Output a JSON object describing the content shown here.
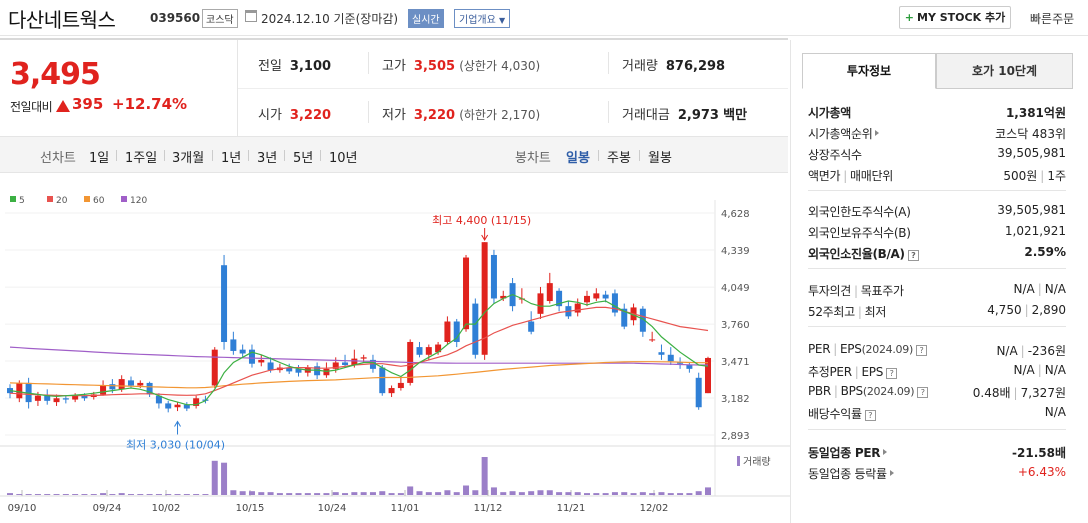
{
  "header": {
    "name": "다산네트웍스",
    "code": "039560",
    "market": "코스닥",
    "date": "2024.12.10 기준(장마감)",
    "live": "실시간",
    "overview": "기업개요",
    "mystock": "MY STOCK 추가",
    "quick": "빠른주문"
  },
  "price": {
    "current": "3,495",
    "change_label": "전일대비",
    "change": "395",
    "change_pct": "+12.74%"
  },
  "quotes": {
    "prev_label": "전일",
    "prev": "3,100",
    "high_label": "고가",
    "high": "3,505",
    "upper_label": "(상한가",
    "upper": "4,030)",
    "volume_label": "거래량",
    "volume": "876,298",
    "open_label": "시가",
    "open": "3,220",
    "low_label": "저가",
    "low": "3,220",
    "lower_label": "(하한가",
    "lower": "2,170)",
    "amount_label": "거래대금",
    "amount": "2,973",
    "amount_unit": "백만"
  },
  "period": {
    "line_label": "선차트",
    "line_options": [
      "1일",
      "1주일",
      "3개월",
      "1년",
      "3년",
      "5년",
      "10년"
    ],
    "candle_label": "봉차트",
    "candle_options": [
      "일봉",
      "주봉",
      "월봉"
    ],
    "candle_selected": "일봉"
  },
  "chart_data": {
    "type": "candlestick",
    "legend": [
      {
        "name": "5",
        "color": "#3cb043"
      },
      {
        "name": "20",
        "color": "#e8534f"
      },
      {
        "name": "60",
        "color": "#f29633"
      },
      {
        "name": "120",
        "color": "#a05fc8"
      }
    ],
    "y_ticks": [
      "4,628",
      "4,339",
      "4,049",
      "3,760",
      "3,471",
      "3,182",
      "2,893"
    ],
    "y_range": [
      2893,
      4628
    ],
    "x_ticks": [
      "09/10",
      "09/24",
      "10/02",
      "10/15",
      "10/24",
      "11/01",
      "11/12",
      "11/21",
      "12/02"
    ],
    "high_annotation": "최고 4,400 (11/15)",
    "low_annotation": "최저 3,030 (10/04)",
    "volume_label": "거래량",
    "up_color": "#e0231e",
    "down_color": "#2f7fd6",
    "ma_color_note": "line colors per legend"
  },
  "info": {
    "tab_on": "투자정보",
    "tab_off": "호가 10단계",
    "mcap_label": "시가총액",
    "mcap": "1,381억원",
    "mcap_rank_label": "시가총액순위",
    "mcap_rank": "코스닥 483위",
    "shares_label": "상장주식수",
    "shares": "39,505,981",
    "par_label": "액면가",
    "unit_label": "매매단위",
    "par": "500원",
    "unit": "1주",
    "foreign_limit_label": "외국인한도주식수(A)",
    "foreign_limit": "39,505,981",
    "foreign_hold_label": "외국인보유주식수(B)",
    "foreign_hold": "1,021,921",
    "foreign_rate_label": "외국인소진율(B/A)",
    "foreign_rate": "2.59%",
    "opinion_label": "투자의견",
    "target_label": "목표주가",
    "opinion": "N/A",
    "target": "N/A",
    "w52_label": "52주최고",
    "w52_low_label": "최저",
    "w52_high": "4,750",
    "w52_low": "2,890",
    "per_label": "PER",
    "eps_label": "EPS",
    "per_eps_date": "(2024.09)",
    "per": "N/A",
    "eps": "-236원",
    "fper_label": "추정PER",
    "feps_label": "EPS",
    "fper": "N/A",
    "feps": "N/A",
    "pbr_label": "PBR",
    "bps_label": "BPS",
    "pbr_bps_date": "(2024.09)",
    "pbr": "0.48배",
    "bps": "7,327원",
    "div_label": "배당수익률",
    "div": "N/A",
    "ind_per_label": "동일업종 PER",
    "ind_per": "-21.58배",
    "ind_rate_label": "동일업종 등락률",
    "ind_rate": "+6.43%"
  }
}
